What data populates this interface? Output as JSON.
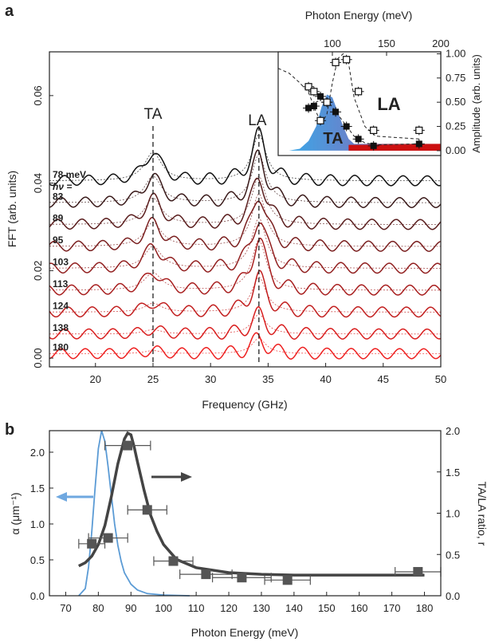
{
  "chart_data": [
    {
      "panel": "a",
      "type": "line",
      "xlabel": "Frequency (GHz)",
      "ylabel": "FFT (arb. units)",
      "xlim": [
        16,
        50
      ],
      "ylim": [
        -0.002,
        0.07
      ],
      "xticks": [
        20,
        25,
        30,
        35,
        40,
        45,
        50
      ],
      "yticks": [
        0.0,
        0.02,
        0.04,
        0.06
      ],
      "ytick_labels": [
        "0.00",
        "0.02",
        "0.04",
        "0.06"
      ],
      "grid": false,
      "peak_labels": [
        {
          "text": "TA",
          "x": 25
        },
        {
          "text": "LA",
          "x": 34.2
        }
      ],
      "energy_header": "hν =",
      "series": [
        {
          "name": "78 meV",
          "color": "#111111",
          "offset": 0.0405,
          "ta": 0.0065,
          "la": 0.0105
        },
        {
          "name": "83",
          "color": "#3a1a1a",
          "offset": 0.0355,
          "ta": 0.006,
          "la": 0.011
        },
        {
          "name": "89",
          "color": "#5a1d1d",
          "offset": 0.0305,
          "ta": 0.006,
          "la": 0.011
        },
        {
          "name": "95",
          "color": "#7a1f1f",
          "offset": 0.0255,
          "ta": 0.0055,
          "la": 0.012
        },
        {
          "name": "103",
          "color": "#922020",
          "offset": 0.0205,
          "ta": 0.005,
          "la": 0.0115
        },
        {
          "name": "113",
          "color": "#a81f1f",
          "offset": 0.0155,
          "ta": 0.004,
          "la": 0.0115
        },
        {
          "name": "124",
          "color": "#c21f1f",
          "offset": 0.0105,
          "ta": 0.002,
          "la": 0.008
        },
        {
          "name": "138",
          "color": "#d91f1f",
          "offset": 0.0055,
          "ta": 0.001,
          "la": 0.0045
        },
        {
          "name": "180",
          "color": "#ee2020",
          "offset": 0.001,
          "ta": 0.0007,
          "la": 0.0035
        }
      ]
    },
    {
      "panel": "a-inset",
      "type": "scatter",
      "xlabel": "Photon Energy (meV)",
      "ylabel": "Amplitude (arb. units)",
      "xlim": [
        50,
        200
      ],
      "ylim": [
        -0.05,
        1.02
      ],
      "xticks": [
        100,
        150,
        200
      ],
      "yticks": [
        0.0,
        0.25,
        0.5,
        0.75,
        1.0
      ],
      "ytick_labels": [
        "0.00",
        "0.25",
        "0.50",
        "0.75",
        "1.00"
      ],
      "labels": [
        "TA",
        "LA"
      ],
      "series": [
        {
          "name": "TA",
          "marker": "filled-square",
          "x": [
            78,
            83,
            89,
            95,
            103,
            113,
            124,
            138,
            180
          ],
          "y": [
            0.44,
            0.46,
            0.56,
            0.5,
            0.4,
            0.25,
            0.12,
            0.05,
            0.07
          ]
        },
        {
          "name": "LA",
          "marker": "open-square",
          "x": [
            78,
            83,
            89,
            95,
            103,
            113,
            124,
            138,
            180
          ],
          "y": [
            0.66,
            0.61,
            0.31,
            0.5,
            0.91,
            0.94,
            0.61,
            0.21,
            0.21
          ]
        }
      ]
    },
    {
      "panel": "b",
      "type": "line",
      "xlabel": "Photon Energy (meV)",
      "ylabel_left": "α (μm⁻¹)",
      "ylabel_right": "TA/LA ratio, r",
      "xlim": [
        65,
        185
      ],
      "ylim_left": [
        0,
        2.3
      ],
      "ylim_right": [
        0,
        2.0
      ],
      "xticks": [
        70,
        80,
        90,
        100,
        110,
        120,
        130,
        140,
        150,
        160,
        170,
        180
      ],
      "yticks_left": [
        0.0,
        0.5,
        1.0,
        1.5,
        2.0
      ],
      "yticks_left_labels": [
        "0.0",
        "0.5",
        "1.0",
        "1.5",
        "2.0"
      ],
      "yticks_right": [
        0.0,
        0.5,
        1.0,
        1.5,
        2.0
      ],
      "yticks_right_labels": [
        "0.0",
        "0.5",
        "1.0",
        "1.5",
        "2.0"
      ],
      "absorption": {
        "color": "#5b9bd5",
        "x": [
          74,
          76,
          77,
          78,
          79,
          80,
          81,
          82,
          83,
          84,
          85,
          86,
          87,
          88,
          90,
          92,
          95,
          100,
          108
        ],
        "y": [
          0.0,
          0.1,
          0.4,
          0.9,
          1.5,
          2.05,
          2.3,
          2.15,
          1.8,
          1.4,
          1.0,
          0.7,
          0.48,
          0.32,
          0.16,
          0.08,
          0.03,
          0.01,
          0.0
        ]
      },
      "ratio_fit": {
        "color": "#444444",
        "x": [
          74,
          76,
          78,
          80,
          82,
          84,
          86,
          88,
          89,
          90,
          91,
          92,
          94,
          96,
          98,
          100,
          104,
          110,
          120,
          130,
          140,
          160,
          180
        ],
        "y": [
          0.36,
          0.4,
          0.48,
          0.62,
          0.85,
          1.2,
          1.6,
          1.9,
          1.97,
          1.95,
          1.8,
          1.62,
          1.28,
          0.98,
          0.78,
          0.62,
          0.44,
          0.34,
          0.28,
          0.26,
          0.25,
          0.25,
          0.25
        ]
      },
      "ratio_points": {
        "x": [
          78,
          83,
          89,
          95,
          103,
          113,
          124,
          138,
          178
        ],
        "y": [
          0.63,
          0.7,
          1.82,
          1.04,
          0.42,
          0.26,
          0.22,
          0.19,
          0.29
        ],
        "xerr": [
          4,
          6,
          7,
          6,
          6,
          8,
          9,
          7,
          7
        ]
      }
    }
  ],
  "panel_labels": [
    "a",
    "b"
  ]
}
